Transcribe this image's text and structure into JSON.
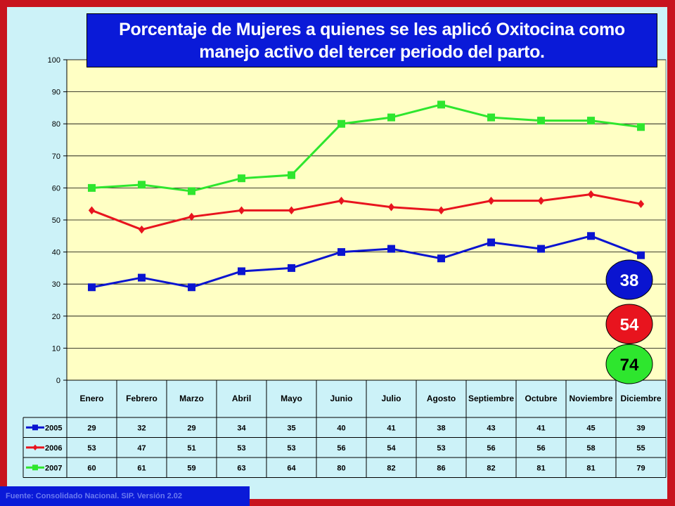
{
  "title": [
    "Porcentaje de Mujeres a quienes se les aplicó Oxitocina como",
    "manejo activo del tercer periodo del parto."
  ],
  "footer": "Fuente: Consolidado Nacional. SIP. Versión 2.02",
  "chart_data": {
    "type": "line",
    "title": "Porcentaje de Mujeres a quienes se les aplicó Oxitocina como manejo activo del tercer periodo del parto.",
    "categories": [
      "Enero",
      "Febrero",
      "Marzo",
      "Abril",
      "Mayo",
      "Junio",
      "Julio",
      "Agosto",
      "Septiembre",
      "Octubre",
      "Noviembre",
      "Diciembre"
    ],
    "ylim": [
      0,
      100
    ],
    "yticks": [
      0,
      10,
      20,
      30,
      40,
      50,
      60,
      70,
      80,
      90,
      100
    ],
    "grid": true,
    "series": [
      {
        "name": "2005",
        "color": "#0a14d0",
        "marker": "square",
        "values": [
          29,
          32,
          29,
          34,
          35,
          40,
          41,
          38,
          43,
          41,
          45,
          39
        ]
      },
      {
        "name": "2006",
        "color": "#e8141e",
        "marker": "diamond",
        "values": [
          53,
          47,
          51,
          53,
          53,
          56,
          54,
          53,
          56,
          56,
          58,
          55
        ]
      },
      {
        "name": "2007",
        "color": "#2ee62e",
        "marker": "square",
        "values": [
          60,
          61,
          59,
          63,
          64,
          80,
          82,
          86,
          82,
          81,
          81,
          79
        ]
      }
    ],
    "callouts": [
      {
        "text": "38",
        "fill": "#0a14d0",
        "color": "#ffffff"
      },
      {
        "text": "54",
        "fill": "#e8141e",
        "color": "#ffffff"
      },
      {
        "text": "74",
        "fill": "#2ee62e",
        "color": "#000000"
      }
    ]
  }
}
